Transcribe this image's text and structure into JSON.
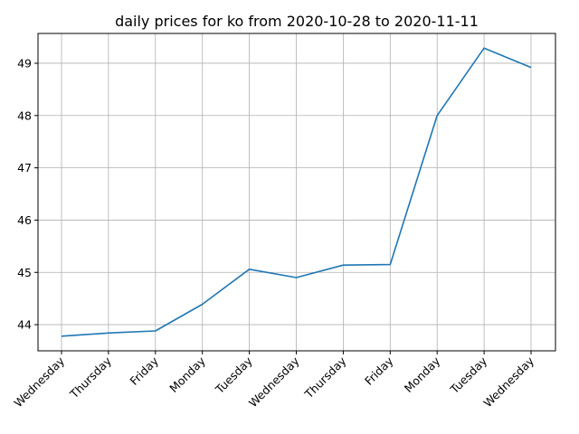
{
  "chart_data": {
    "type": "line",
    "title": "daily prices for ko from 2020-10-28 to 2020-11-11",
    "xlabel": "",
    "ylabel": "",
    "categories": [
      "Wednesday",
      "Thursday",
      "Friday",
      "Monday",
      "Tuesday",
      "Wednesday",
      "Thursday",
      "Friday",
      "Monday",
      "Tuesday",
      "Wednesday"
    ],
    "series": [
      {
        "values": [
          43.78,
          43.84,
          43.88,
          44.39,
          45.06,
          44.9,
          45.14,
          45.15,
          48.0,
          49.29,
          48.92
        ]
      }
    ],
    "yticks": [
      44,
      45,
      46,
      47,
      48,
      49
    ],
    "ylim": [
      43.5,
      49.57
    ],
    "grid": true,
    "legend": "none",
    "colors": {
      "series": "#1f77b4"
    }
  }
}
